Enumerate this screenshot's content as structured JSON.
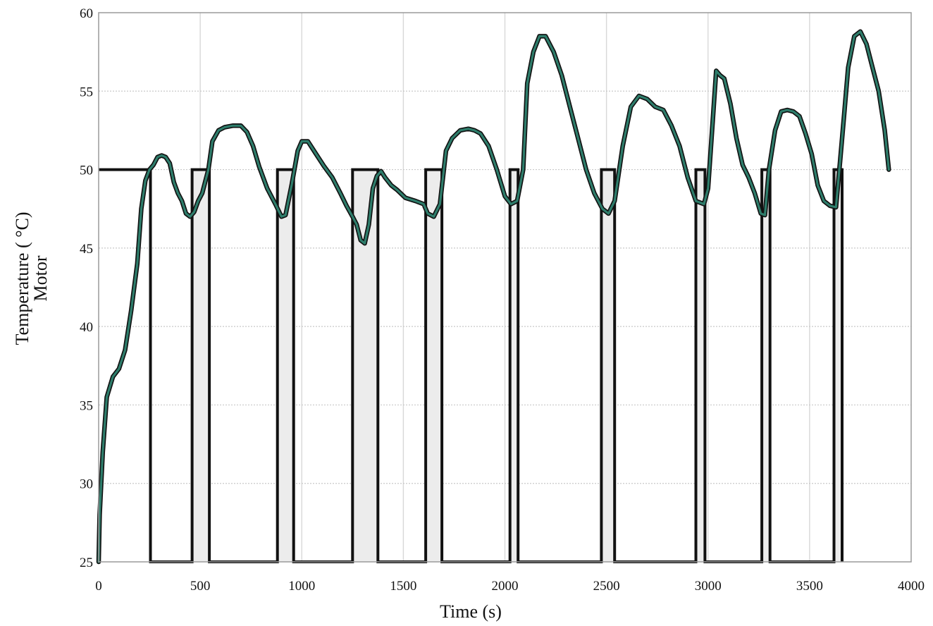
{
  "chart_data": {
    "type": "line",
    "title": "",
    "xlabel": "Time (s)",
    "ylabel_lines": [
      "Temperature ( °C)",
      "Motor"
    ],
    "xlim": [
      0,
      4000
    ],
    "ylim": [
      25,
      60
    ],
    "xticks": [
      0,
      500,
      1000,
      1500,
      2000,
      2500,
      3000,
      3500,
      4000
    ],
    "yticks": [
      25,
      30,
      35,
      40,
      45,
      50,
      55,
      60
    ],
    "grid": true,
    "legend": "none",
    "colors": {
      "temperature": "#2e7d6b",
      "switch": "#111111"
    },
    "series": [
      {
        "x": [
          0,
          5,
          20,
          40,
          70,
          100,
          130,
          160,
          190,
          210,
          230,
          250,
          270,
          290,
          310,
          330,
          350,
          370,
          390,
          410,
          430,
          450,
          470,
          490,
          510,
          540,
          560,
          590,
          620,
          660,
          700,
          730,
          760,
          790,
          830,
          870,
          900,
          920,
          950,
          980,
          1000,
          1030,
          1070,
          1110,
          1150,
          1190,
          1220,
          1250,
          1270,
          1290,
          1310,
          1330,
          1350,
          1370,
          1390,
          1410,
          1440,
          1470,
          1510,
          1560,
          1600,
          1620,
          1650,
          1680,
          1710,
          1740,
          1780,
          1820,
          1850,
          1880,
          1920,
          1960,
          2000,
          2030,
          2060,
          2090,
          2110,
          2140,
          2170,
          2200,
          2240,
          2280,
          2320,
          2360,
          2400,
          2440,
          2480,
          2510,
          2540,
          2580,
          2620,
          2660,
          2700,
          2740,
          2780,
          2820,
          2860,
          2900,
          2940,
          2980,
          3000,
          3020,
          3040,
          3060,
          3080,
          3110,
          3140,
          3170,
          3200,
          3230,
          3260,
          3280,
          3300,
          3330,
          3360,
          3390,
          3420,
          3450,
          3480,
          3510,
          3540,
          3570,
          3600,
          3630,
          3650,
          3670,
          3690,
          3720,
          3750,
          3780,
          3810,
          3840,
          3870,
          3890
        ],
        "y": [
          25,
          28,
          32,
          35.5,
          36.8,
          37.3,
          38.5,
          41,
          44,
          47.5,
          49.3,
          50,
          50.3,
          50.8,
          50.9,
          50.8,
          50.4,
          49.2,
          48.5,
          48,
          47.2,
          47,
          47.3,
          48,
          48.5,
          50,
          51.8,
          52.5,
          52.7,
          52.8,
          52.8,
          52.4,
          51.5,
          50.2,
          48.8,
          47.8,
          47,
          47.1,
          49,
          51.2,
          51.8,
          51.8,
          51,
          50.2,
          49.5,
          48.5,
          47.7,
          47,
          46.5,
          45.5,
          45.3,
          46.5,
          48.8,
          49.6,
          49.9,
          49.5,
          49,
          48.7,
          48.2,
          48,
          47.8,
          47.2,
          47,
          47.8,
          51.2,
          52,
          52.5,
          52.6,
          52.5,
          52.3,
          51.5,
          50,
          48.3,
          47.8,
          48,
          50,
          55.5,
          57.5,
          58.5,
          58.5,
          57.5,
          56,
          54,
          52,
          50,
          48.5,
          47.5,
          47.2,
          48,
          51.5,
          54,
          54.7,
          54.5,
          54,
          53.8,
          52.8,
          51.5,
          49.5,
          48,
          47.8,
          48.8,
          52.5,
          56.3,
          56,
          55.8,
          54.2,
          52,
          50.3,
          49.5,
          48.5,
          47.2,
          47.1,
          50,
          52.5,
          53.7,
          53.8,
          53.7,
          53.4,
          52.3,
          51,
          49,
          48,
          47.7,
          47.6,
          50.5,
          53.5,
          56.5,
          58.5,
          58.8,
          58,
          56.5,
          55,
          52.5,
          50
        ]
      },
      {
        "x": [
          0,
          255,
          255,
          270,
          270,
          460,
          460,
          545,
          545,
          880,
          880,
          960,
          960,
          1250,
          1250,
          1375,
          1375,
          1610,
          1610,
          1690,
          1690,
          2025,
          2025,
          2065,
          2065,
          2475,
          2475,
          2540,
          2540,
          2940,
          2940,
          2985,
          2985,
          3265,
          3265,
          3305,
          3305,
          3620,
          3620,
          3660,
          3660
        ],
        "y": [
          50,
          50,
          25,
          25,
          25,
          25,
          50,
          50,
          25,
          25,
          50,
          50,
          25,
          25,
          50,
          50,
          25,
          25,
          50,
          50,
          25,
          25,
          50,
          50,
          25,
          25,
          50,
          50,
          25,
          25,
          50,
          50,
          25,
          25,
          50,
          50,
          25,
          25,
          50,
          50,
          25
        ]
      }
    ]
  }
}
